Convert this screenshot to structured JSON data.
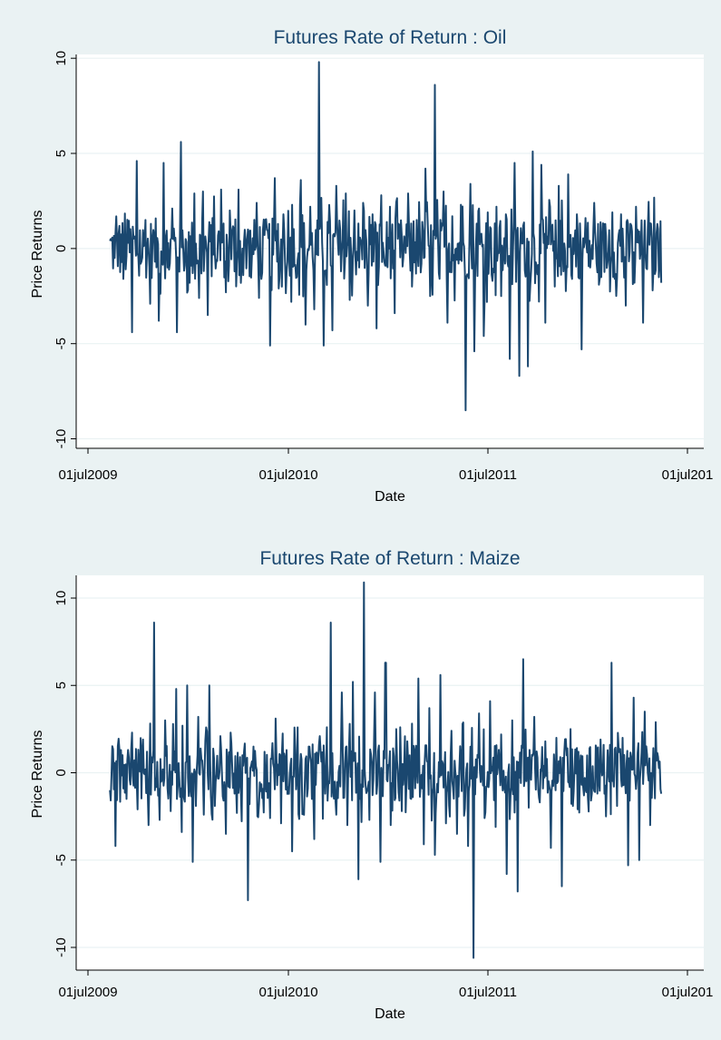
{
  "chart_data": [
    {
      "type": "line",
      "title": "Futures Rate of Return : Oil",
      "xlabel": "Date",
      "ylabel": "Price Returns",
      "xlim": [
        "2009-07-01",
        "2012-07-01"
      ],
      "ylim": [
        -10.5,
        10.2
      ],
      "xticks": [
        "01jul2009",
        "01jul2010",
        "01jul2011",
        "01jul201"
      ],
      "yticks": [
        10,
        5,
        0,
        -5,
        -10
      ],
      "ytick_labels": [
        "10",
        "5",
        "0",
        "-5",
        "-10"
      ],
      "grid": true,
      "series_color": "#1a476f",
      "series": [
        {
          "x_start": "2009-08-10",
          "x_end": "2012-05-10",
          "n_points": 700,
          "values_note_sampled": [
            0.4,
            -0.5,
            0.8,
            -1.6,
            0.3,
            -4.4,
            4.6,
            -0.8,
            1.5,
            -2.9,
            0.7,
            -3.8,
            4.5,
            -1.0,
            2.1,
            -4.4,
            5.6,
            0.5,
            -1.8,
            2.9,
            -2.6,
            3.0,
            -3.5,
            1.6,
            -0.6,
            3.1,
            -2.3,
            2.0,
            -1.2,
            3.1,
            -1.4,
            1.0,
            -0.4,
            2.4,
            -1.6,
            1.5,
            -5.1,
            3.7,
            -2.1,
            1.8,
            -0.7,
            2.3,
            -1.5,
            3.6,
            -4.0,
            2.2,
            -3.2,
            9.8,
            -5.1,
            1.4,
            -4.3,
            3.3,
            -1.2,
            2.9,
            -2.7,
            2.0,
            -1.0,
            2.4,
            -3.0,
            1.8,
            -4.2,
            2.8,
            -0.9,
            2.2,
            -3.4,
            1.3,
            -0.5,
            2.9,
            -2.0,
            1.5,
            -0.8,
            4.2,
            -2.5,
            8.6,
            -1.3,
            3.0,
            -3.9,
            1.7,
            -0.6,
            2.3,
            -8.5,
            3.4,
            -5.4,
            2.1,
            -4.6,
            1.9,
            -1.7,
            2.2,
            -2.5,
            1.8,
            -5.8,
            4.5,
            -6.7,
            1.2,
            -6.2,
            5.1,
            -0.9,
            4.4,
            -3.9,
            2.2,
            -2.0,
            3.3,
            -1.2,
            3.9,
            -1.6,
            1.8,
            -5.3,
            1.6,
            -1.0,
            2.4,
            -1.9,
            1.3,
            -0.7,
            1.9,
            -1.5,
            1.8,
            -3.0,
            1.3,
            -1.8,
            0.9,
            -3.9,
            1.0,
            -2.2,
            0.8,
            -1.8
          ]
        }
      ]
    },
    {
      "type": "line",
      "title": "Futures Rate of Return :  Maize",
      "xlabel": "Date",
      "ylabel": "Price Returns",
      "xlim": [
        "2009-07-01",
        "2012-07-01"
      ],
      "ylim": [
        -11.3,
        11.3
      ],
      "xticks": [
        "01jul2009",
        "01jul2010",
        "01jul2011",
        "01jul201"
      ],
      "yticks": [
        10,
        5,
        0,
        -5,
        -10
      ],
      "ytick_labels": [
        "10",
        "5",
        "0",
        "-5",
        "-10"
      ],
      "grid": true,
      "series_color": "#1a476f",
      "series": [
        {
          "x_start": "2009-08-10",
          "x_end": "2012-05-10",
          "n_points": 700,
          "values_note_sampled": [
            -1.0,
            -4.2,
            1.3,
            -1.5,
            2.3,
            -2.1,
            1.9,
            -3.0,
            8.6,
            -2.7,
            3.0,
            -2.2,
            4.8,
            -3.4,
            5.0,
            -5.1,
            3.2,
            -2.4,
            5.0,
            -1.9,
            2.1,
            -3.5,
            1.7,
            -2.3,
            1.0,
            -7.3,
            1.5,
            -1.8,
            1.2,
            -2.6,
            3.1,
            -2.9,
            1.3,
            -4.5,
            2.6,
            -2.2,
            1.5,
            -3.8,
            2.1,
            -1.2,
            8.6,
            -2.4,
            4.6,
            -3.0,
            5.2,
            -6.1,
            10.9,
            -2.7,
            4.6,
            -5.1,
            6.3,
            -3.0,
            2.5,
            -2.2,
            1.8,
            -1.4,
            5.4,
            -4.1,
            3.7,
            -4.7,
            5.6,
            -2.9,
            2.4,
            -3.5,
            2.8,
            -4.2,
            -10.6,
            3.4,
            -2.6,
            4.1,
            -3.1,
            2.2,
            -5.8,
            3.0,
            -6.8,
            6.5,
            -2.0,
            3.2,
            -1.7,
            1.8,
            -4.3,
            2.0,
            -6.5,
            1.4,
            -1.9,
            1.2,
            -1.3,
            1.4,
            -1.1,
            1.9,
            -2.5,
            6.3,
            -1.9,
            2.0,
            -5.3,
            4.3,
            -5.0,
            3.5,
            -3.0,
            2.9,
            -1.2
          ]
        }
      ]
    }
  ]
}
